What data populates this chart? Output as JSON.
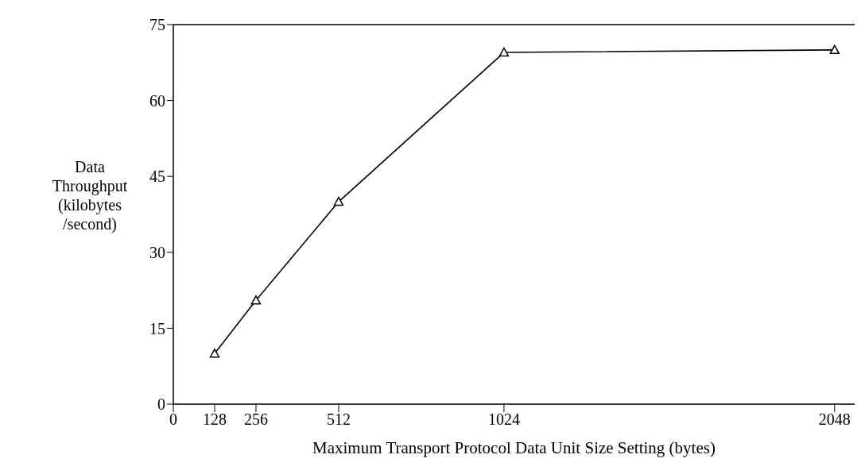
{
  "chart_data": {
    "type": "line",
    "xlabel": "Maximum Transport Protocol Data Unit Size Setting (bytes)",
    "ylabel": "Data Throughput (kilobytes /second)",
    "x": [
      128,
      256,
      512,
      1024,
      2048
    ],
    "series": [
      {
        "color": "#000000",
        "values": [
          10,
          20.5,
          40,
          69.5,
          70
        ]
      }
    ],
    "xlim": [
      0,
      2110
    ],
    "xticks": [
      0,
      128,
      256,
      512,
      1024,
      2048
    ],
    "ylim": [
      0,
      75
    ],
    "yticks": [
      0,
      15,
      30,
      45,
      60,
      75
    ],
    "grid": false,
    "legend": false,
    "marker": "triangle",
    "line_style": "solid"
  }
}
